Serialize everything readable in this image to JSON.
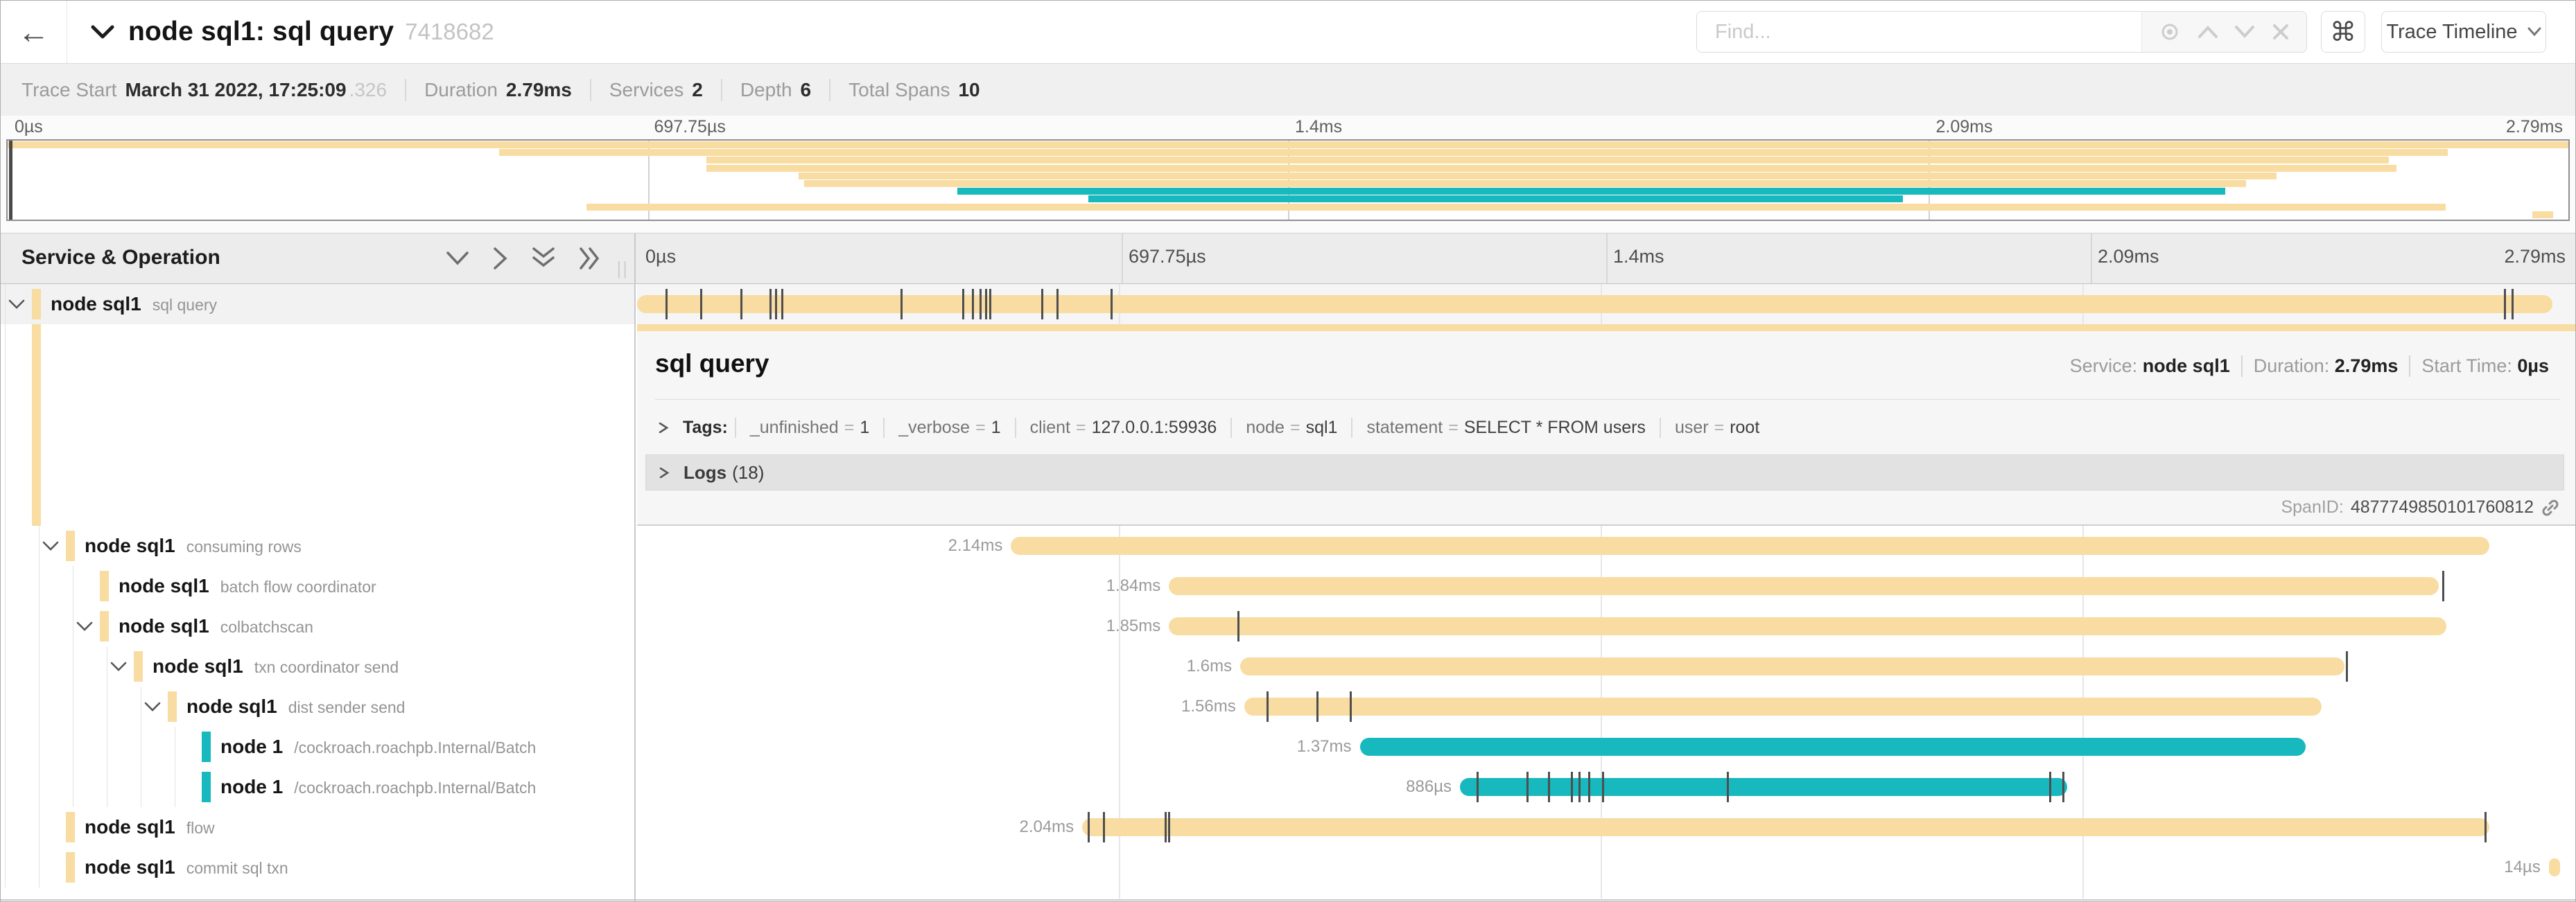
{
  "colors": {
    "amber": "#F8DCA1",
    "teal": "#17B8BE"
  },
  "header": {
    "back_icon": "←",
    "title": "node sql1: sql query",
    "trace_id": "7418682",
    "find_placeholder": "Find...",
    "command_icon": "⌘",
    "view_button": "Trace Timeline"
  },
  "summary": {
    "items": [
      {
        "label": "Trace Start",
        "value": "March 31 2022, 17:25:09",
        "suffix": ".326"
      },
      {
        "label": "Duration",
        "value": "2.79ms",
        "suffix": ""
      },
      {
        "label": "Services",
        "value": "2",
        "suffix": ""
      },
      {
        "label": "Depth",
        "value": "6",
        "suffix": ""
      },
      {
        "label": "Total Spans",
        "value": "10",
        "suffix": ""
      }
    ]
  },
  "timeline": {
    "header_label": "Service & Operation",
    "ticks": [
      "0µs",
      "697.75µs",
      "1.4ms",
      "2.09ms",
      "2.79ms"
    ]
  },
  "minimap": {
    "lanes": [
      {
        "start": 0,
        "end": 100,
        "color": "amber"
      },
      {
        "start": 19.2,
        "end": 95.3,
        "color": "amber"
      },
      {
        "start": 27.3,
        "end": 93.0,
        "color": "amber"
      },
      {
        "start": 27.3,
        "end": 93.3,
        "color": "amber"
      },
      {
        "start": 30.9,
        "end": 88.6,
        "color": "amber"
      },
      {
        "start": 31.1,
        "end": 87.4,
        "color": "amber"
      },
      {
        "start": 37.1,
        "end": 86.6,
        "color": "teal"
      },
      {
        "start": 42.2,
        "end": 74.0,
        "color": "teal"
      },
      {
        "start": 22.6,
        "end": 95.2,
        "color": "amber"
      },
      {
        "start": 98.6,
        "end": 99.4,
        "color": "amber"
      }
    ]
  },
  "detail": {
    "title": "sql query",
    "service_label": "Service:",
    "service": "node sql1",
    "duration_label": "Duration:",
    "duration": "2.79ms",
    "start_label": "Start Time:",
    "start": "0µs",
    "tags_label": "Tags:",
    "tags": [
      {
        "key": "_unfinished",
        "value": "1"
      },
      {
        "key": "_verbose",
        "value": "1"
      },
      {
        "key": "client",
        "value": "127.0.0.1:59936"
      },
      {
        "key": "node",
        "value": "sql1"
      },
      {
        "key": "statement",
        "value": "SELECT * FROM users"
      },
      {
        "key": "user",
        "value": "root"
      }
    ],
    "logs_label": "Logs",
    "logs_count": "(18)",
    "spanid_label": "SpanID:",
    "spanid": "4877749850101760812"
  },
  "spans": [
    {
      "service": "node sql1",
      "operation": "sql query",
      "depth": 0,
      "color": "amber",
      "chevron": true,
      "selected": true,
      "start": 0,
      "width": 99.4,
      "label": "",
      "ticks": [
        1.5,
        3.3,
        5.4,
        6.9,
        7.2,
        7.5,
        13.7,
        16.9,
        17.4,
        17.8,
        18.1,
        18.3,
        21.0,
        21.8,
        24.6,
        96.9,
        97.3
      ]
    },
    {
      "service": "node sql1",
      "operation": "consuming rows",
      "depth": 1,
      "color": "amber",
      "chevron": true,
      "selected": false,
      "start": 19.4,
      "width": 76.7,
      "label": "2.14ms",
      "ticks": []
    },
    {
      "service": "node sql1",
      "operation": "batch flow coordinator",
      "depth": 2,
      "color": "amber",
      "chevron": false,
      "selected": false,
      "start": 27.6,
      "width": 65.9,
      "label": "1.84ms",
      "ticks": [
        93.7
      ]
    },
    {
      "service": "node sql1",
      "operation": "colbatchscan",
      "depth": 2,
      "color": "amber",
      "chevron": true,
      "selected": false,
      "start": 27.6,
      "width": 66.3,
      "label": "1.85ms",
      "ticks": [
        31.2
      ]
    },
    {
      "service": "node sql1",
      "operation": "txn coordinator send",
      "depth": 3,
      "color": "amber",
      "chevron": true,
      "selected": false,
      "start": 31.3,
      "width": 57.3,
      "label": "1.6ms",
      "ticks": [
        88.7
      ]
    },
    {
      "service": "node sql1",
      "operation": "dist sender send",
      "depth": 4,
      "color": "amber",
      "chevron": true,
      "selected": false,
      "start": 31.5,
      "width": 55.9,
      "label": "1.56ms",
      "ticks": [
        32.7,
        35.3,
        37.0
      ]
    },
    {
      "service": "node 1",
      "operation": "/cockroach.roachpb.Internal/Batch",
      "depth": 5,
      "color": "teal",
      "chevron": false,
      "selected": false,
      "start": 37.5,
      "width": 49.1,
      "label": "1.37ms",
      "ticks": []
    },
    {
      "service": "node 1",
      "operation": "/cockroach.roachpb.Internal/Batch",
      "depth": 5,
      "color": "teal",
      "chevron": false,
      "selected": false,
      "start": 42.7,
      "width": 31.5,
      "label": "886µs",
      "ticks": [
        43.6,
        46.2,
        47.3,
        48.5,
        48.9,
        49.4,
        50.1,
        56.6,
        73.3,
        74.0
      ]
    },
    {
      "service": "node sql1",
      "operation": "flow",
      "depth": 1,
      "color": "amber",
      "chevron": false,
      "selected": false,
      "start": 23.1,
      "width": 73.0,
      "label": "2.04ms",
      "ticks": [
        23.4,
        24.2,
        27.4,
        27.6,
        95.9
      ]
    },
    {
      "service": "node sql1",
      "operation": "commit sql txn",
      "depth": 1,
      "color": "amber",
      "chevron": false,
      "selected": false,
      "start": 99.2,
      "width": 0.6,
      "label": "14µs",
      "ticks": []
    }
  ]
}
